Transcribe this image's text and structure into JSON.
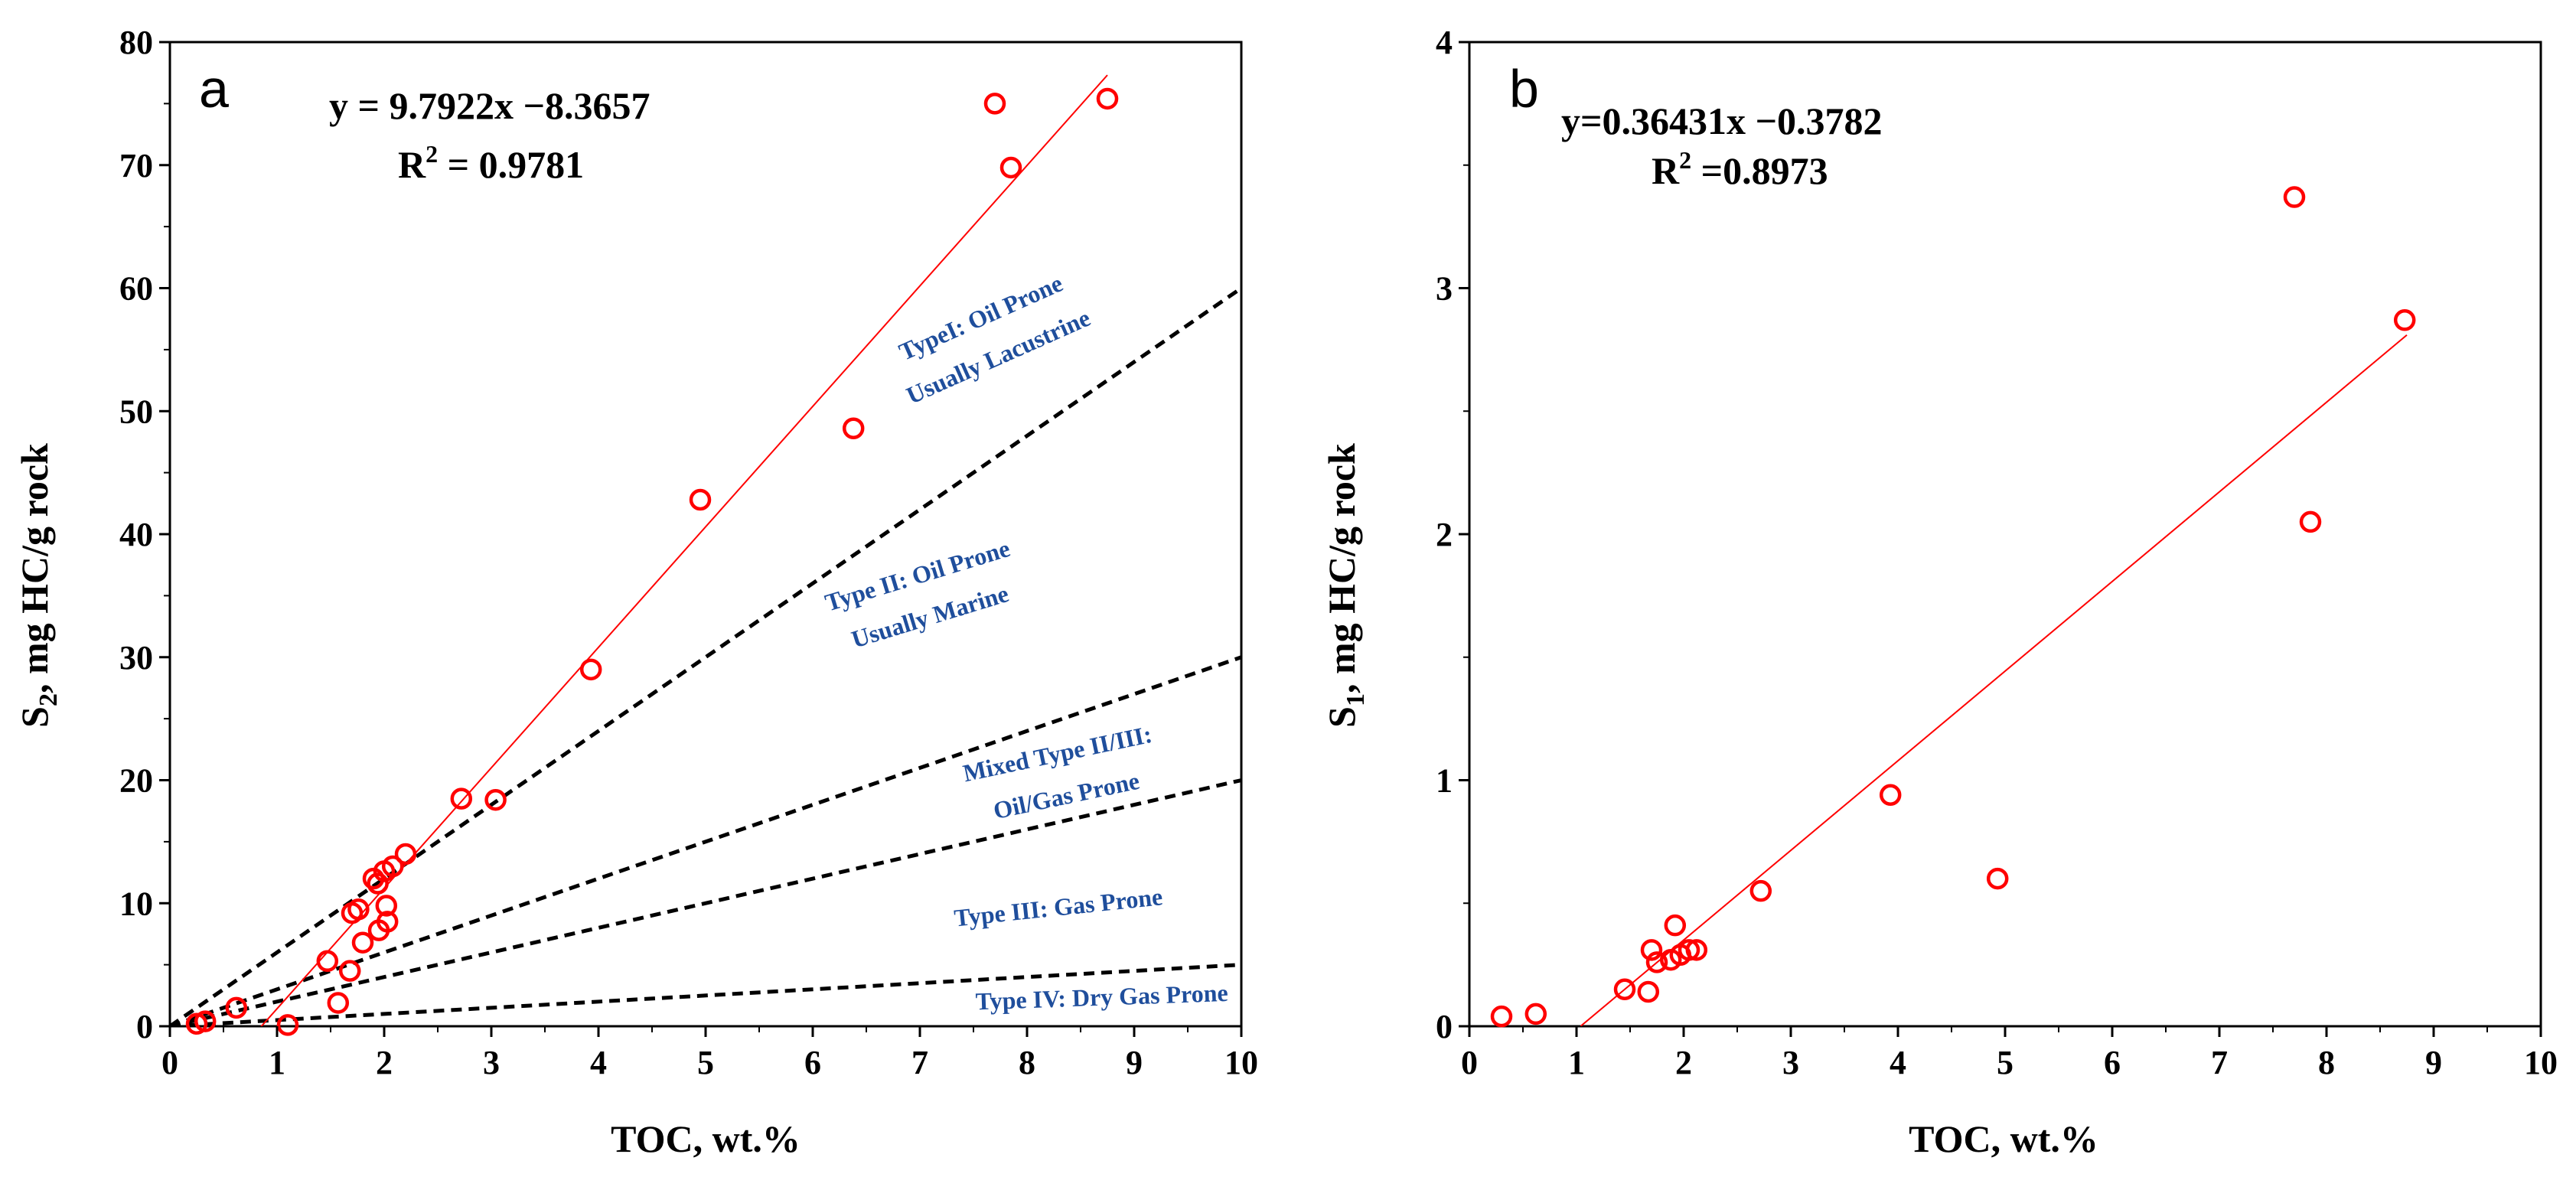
{
  "chart_data": [
    {
      "panel": "a",
      "type": "scatter",
      "xlabel": "TOC, wt.%",
      "ylabel": "S2, mg HC/g rock",
      "ylabel_main": "S",
      "ylabel_sub": "2",
      "ylabel_rest": ", mg HC/g rock",
      "xlim": [
        0,
        10
      ],
      "ylim": [
        0,
        80
      ],
      "xticks": [
        0,
        1,
        2,
        3,
        4,
        5,
        6,
        7,
        8,
        9,
        10
      ],
      "yticks": [
        0,
        10,
        20,
        30,
        40,
        50,
        60,
        70,
        80
      ],
      "equation": "y = 9.7922x −8.3657",
      "r2_label": "R",
      "r2_sup": "2",
      "r2_value": " = 0.9781",
      "regression": {
        "slope": 9.7922,
        "intercept": -8.3657,
        "x_range": [
          0.85,
          8.75
        ],
        "color": "#ff0000"
      },
      "boundary_lines": [
        {
          "name": "type-i-ii-boundary",
          "slope": 6.0
        },
        {
          "name": "type-ii-iii-boundary",
          "slope": 3.0
        },
        {
          "name": "type-iii-boundary",
          "slope": 2.0
        },
        {
          "name": "type-iii-iv-boundary",
          "slope": 0.5
        }
      ],
      "zone_labels": [
        {
          "name": "type-i-label",
          "lines": [
            "TypeI:   Oil Prone",
            "Usually Lacustrine"
          ],
          "at": [
            7.6,
            57.0
          ],
          "angle": -24
        },
        {
          "name": "type-ii-label",
          "lines": [
            "Type II:   Oil Prone",
            "Usually Marine"
          ],
          "at": [
            7.0,
            36.0
          ],
          "angle": -17
        },
        {
          "name": "mixed-type-label",
          "lines": [
            "Mixed Type II/III:",
            "Oil/Gas Prone"
          ],
          "at": [
            8.3,
            21.5
          ],
          "angle": -12
        },
        {
          "name": "type-iii-label",
          "lines": [
            "Type III:   Gas Prone"
          ],
          "at": [
            8.3,
            9.0
          ],
          "angle": -6
        },
        {
          "name": "type-iv-label",
          "lines": [
            "Type IV:   Dry Gas Prone"
          ],
          "at": [
            8.7,
            1.7
          ],
          "angle": -2
        }
      ],
      "points": [
        {
          "x": 0.25,
          "y": 0.2
        },
        {
          "x": 0.33,
          "y": 0.4
        },
        {
          "x": 0.62,
          "y": 1.5
        },
        {
          "x": 1.1,
          "y": 0.1
        },
        {
          "x": 1.47,
          "y": 5.3
        },
        {
          "x": 1.57,
          "y": 1.9
        },
        {
          "x": 1.68,
          "y": 4.5
        },
        {
          "x": 1.7,
          "y": 9.2
        },
        {
          "x": 1.76,
          "y": 9.5
        },
        {
          "x": 1.8,
          "y": 6.8
        },
        {
          "x": 1.9,
          "y": 12.0
        },
        {
          "x": 1.94,
          "y": 11.6
        },
        {
          "x": 1.95,
          "y": 7.8
        },
        {
          "x": 2.0,
          "y": 12.6
        },
        {
          "x": 2.02,
          "y": 9.8
        },
        {
          "x": 2.03,
          "y": 8.5
        },
        {
          "x": 2.08,
          "y": 13.0
        },
        {
          "x": 2.2,
          "y": 14.0
        },
        {
          "x": 2.72,
          "y": 18.5
        },
        {
          "x": 3.04,
          "y": 18.4
        },
        {
          "x": 3.93,
          "y": 29.0
        },
        {
          "x": 4.95,
          "y": 42.8
        },
        {
          "x": 6.38,
          "y": 48.6
        },
        {
          "x": 7.7,
          "y": 75.0
        },
        {
          "x": 7.85,
          "y": 69.8
        },
        {
          "x": 8.75,
          "y": 75.4
        }
      ]
    },
    {
      "panel": "b",
      "type": "scatter",
      "xlabel": "TOC, wt.%",
      "ylabel": "S1, mg HC/g rock",
      "ylabel_main": "S",
      "ylabel_sub": "1",
      "ylabel_rest": ", mg HC/g rock",
      "xlim": [
        0,
        10
      ],
      "ylim": [
        0,
        4
      ],
      "xticks": [
        0,
        1,
        2,
        3,
        4,
        5,
        6,
        7,
        8,
        9,
        10
      ],
      "yticks": [
        0,
        1,
        2,
        3,
        4
      ],
      "equation": "y=0.36431x −0.3782",
      "r2_label": "R",
      "r2_sup": "2",
      "r2_value": " =0.8973",
      "regression": {
        "slope": 0.36431,
        "intercept": -0.3782,
        "x_range": [
          1.04,
          8.75
        ],
        "color": "#ff0000"
      },
      "boundary_lines": [],
      "zone_labels": [],
      "points": [
        {
          "x": 0.3,
          "y": 0.04
        },
        {
          "x": 0.62,
          "y": 0.05
        },
        {
          "x": 1.45,
          "y": 0.15
        },
        {
          "x": 1.67,
          "y": 0.14
        },
        {
          "x": 1.7,
          "y": 0.31
        },
        {
          "x": 1.75,
          "y": 0.26
        },
        {
          "x": 1.88,
          "y": 0.27
        },
        {
          "x": 1.92,
          "y": 0.41
        },
        {
          "x": 1.97,
          "y": 0.29
        },
        {
          "x": 2.05,
          "y": 0.31
        },
        {
          "x": 2.12,
          "y": 0.31
        },
        {
          "x": 2.72,
          "y": 0.55
        },
        {
          "x": 3.93,
          "y": 0.94
        },
        {
          "x": 4.93,
          "y": 0.6
        },
        {
          "x": 7.7,
          "y": 3.37
        },
        {
          "x": 7.85,
          "y": 2.05
        },
        {
          "x": 8.73,
          "y": 2.87
        }
      ]
    }
  ]
}
